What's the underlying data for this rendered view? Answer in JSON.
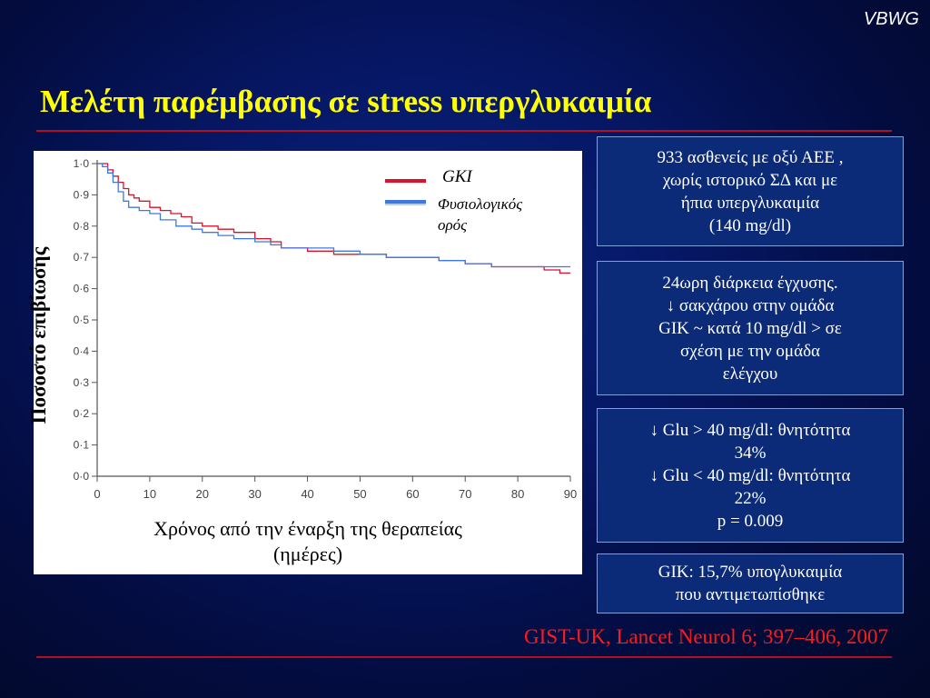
{
  "brand": "VBWG",
  "title": "Μελέτη παρέμβασης σε stress υπεργλυκαιμία",
  "colors": {
    "title": "#ffff00",
    "gki": "#d8132b",
    "physio": "#3f79e0",
    "rule": "#b01020",
    "citation": "#ff1a1a"
  },
  "chart_data": {
    "type": "line",
    "ylabel": "Ποσοστό επιβίωσης",
    "xlabel_line1": "Χρόνος από την έναρξη της θεραπείας",
    "xlabel_line2": "(ημέρες)",
    "xlim": [
      0,
      90
    ],
    "ylim": [
      0,
      1
    ],
    "x_ticks": [
      "0",
      "10",
      "20",
      "30",
      "40",
      "50",
      "60",
      "70",
      "80",
      "90"
    ],
    "y_ticks": [
      "0·0",
      "0·1",
      "0·2",
      "0·3",
      "0·4",
      "0·5",
      "0·6",
      "0·7",
      "0·8",
      "0·9",
      "1·0"
    ],
    "legend": [
      "GKI",
      "Φυσιολογικός",
      "ορός"
    ],
    "series": [
      {
        "name": "GKI",
        "color": "#d8132b",
        "x": [
          0,
          1,
          2,
          3,
          4,
          5,
          6,
          7,
          8,
          10,
          12,
          14,
          16,
          18,
          20,
          23,
          26,
          30,
          33,
          35,
          40,
          45,
          50,
          55,
          60,
          65,
          70,
          75,
          80,
          85,
          88,
          90
        ],
        "y": [
          1.0,
          1.0,
          0.98,
          0.96,
          0.94,
          0.92,
          0.9,
          0.89,
          0.88,
          0.86,
          0.85,
          0.84,
          0.83,
          0.81,
          0.8,
          0.79,
          0.78,
          0.76,
          0.75,
          0.73,
          0.72,
          0.71,
          0.71,
          0.7,
          0.7,
          0.69,
          0.68,
          0.67,
          0.67,
          0.66,
          0.65,
          0.65
        ]
      },
      {
        "name": "Φυσιολογικός ορός",
        "color": "#3f79e0",
        "x": [
          0,
          1,
          2,
          3,
          4,
          5,
          6,
          8,
          10,
          12,
          15,
          18,
          20,
          23,
          26,
          30,
          33,
          35,
          40,
          45,
          50,
          55,
          60,
          65,
          70,
          75,
          80,
          85,
          90
        ],
        "y": [
          1.0,
          0.99,
          0.97,
          0.94,
          0.91,
          0.88,
          0.86,
          0.85,
          0.84,
          0.82,
          0.8,
          0.79,
          0.78,
          0.77,
          0.76,
          0.75,
          0.74,
          0.73,
          0.73,
          0.72,
          0.71,
          0.7,
          0.7,
          0.69,
          0.68,
          0.67,
          0.67,
          0.67,
          0.67
        ]
      }
    ]
  },
  "boxes": {
    "b1": [
      "933 ασθενείς με οξύ ΑΕΕ ,",
      "χωρίς ιστορικό ΣΔ και με",
      "ήπια υπεργλυκαιμία",
      "(140 mg/dl)"
    ],
    "b2": [
      "24ωρη διάρκεια έγχυσης.",
      "↓ σακχάρου στην ομάδα",
      "GIK ~ κατά 10 mg/dl > σε",
      "σχέση με την ομάδα",
      "ελέγχου"
    ],
    "b3": [
      "↓ Glu > 40 mg/dl: θνητότητα",
      "34%",
      "↓ Glu < 40 mg/dl:  θνητότητα",
      "22%",
      "p = 0.009"
    ],
    "b4": [
      "GIK: 15,7% υπογλυκαιμία",
      "που αντιμετωπίσθηκε"
    ]
  },
  "citation": "GIST-UK,  Lancet Neurol 6; 397–406, 2007"
}
